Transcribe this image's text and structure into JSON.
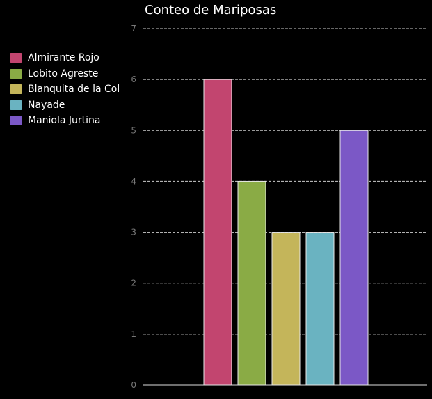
{
  "chart_data": {
    "type": "bar",
    "title": "Conteo de Mariposas",
    "xlabel": "",
    "ylabel": "",
    "categories": [
      "Almirante Rojo",
      "Lobito Agreste",
      "Blanquita de la Col",
      "Nayade",
      "Maniola Jurtina"
    ],
    "values": [
      6,
      4,
      3,
      3,
      5
    ],
    "colors": [
      "#c2456f",
      "#8aab45",
      "#c4b55a",
      "#6ab3c1",
      "#7b58c6"
    ],
    "ylim": [
      0,
      7
    ],
    "yticks": [
      "0",
      "1",
      "2",
      "3",
      "4",
      "5",
      "6",
      "7"
    ],
    "grid": true,
    "legend_position": "left"
  }
}
